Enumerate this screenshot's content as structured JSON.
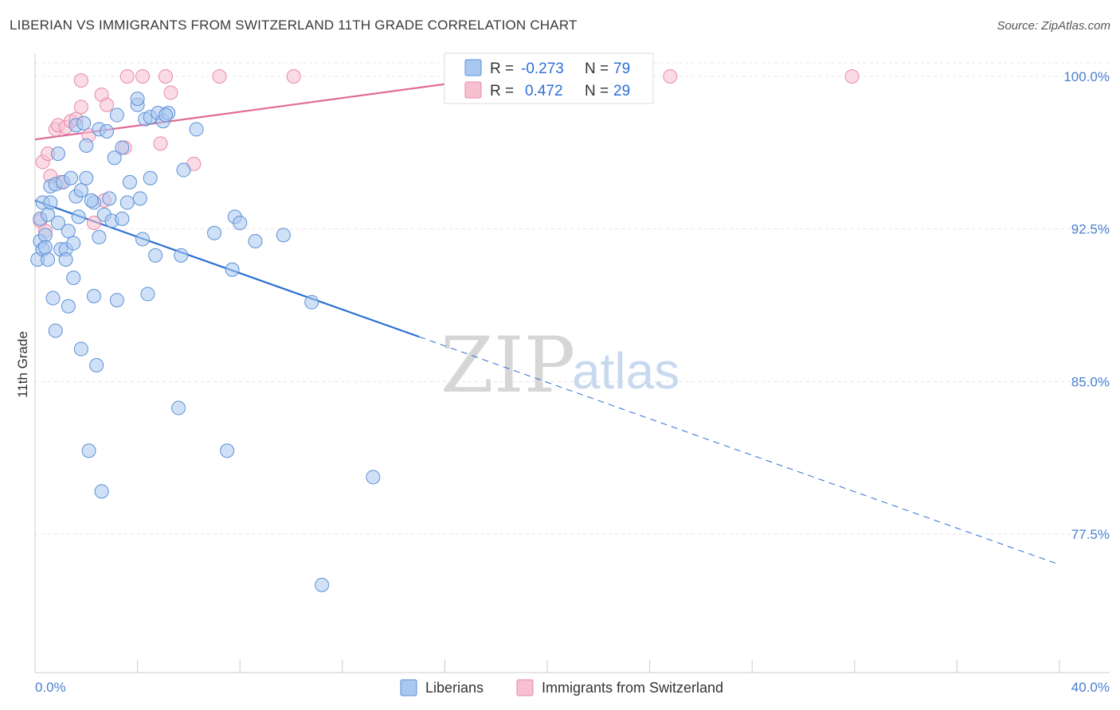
{
  "title": "LIBERIAN VS IMMIGRANTS FROM SWITZERLAND 11TH GRADE CORRELATION CHART",
  "source": "Source: ZipAtlas.com",
  "watermark": {
    "zip": "ZIP",
    "atlas": "atlas"
  },
  "chart_data": {
    "type": "scatter",
    "title": "LIBERIAN VS IMMIGRANTS FROM SWITZERLAND 11TH GRADE CORRELATION CHART",
    "xlabel": "",
    "ylabel": "11th Grade",
    "xlim": [
      0,
      40
    ],
    "ylim": [
      71,
      100.7
    ],
    "x_tick_labels": [
      "0.0%",
      "40.0%"
    ],
    "y_ticks": [
      100.0,
      92.5,
      85.0,
      77.5
    ],
    "y_tick_labels": [
      "100.0%",
      "92.5%",
      "85.0%",
      "77.5%"
    ],
    "grid": true,
    "legend": {
      "position": "top-center",
      "entries": [
        {
          "name": "Liberians",
          "r_label": "R =",
          "r": "-0.273",
          "n_label": "N =",
          "n": "79"
        },
        {
          "name": "Immigrants from Switzerland",
          "r_label": "R =",
          "r": "0.472",
          "n_label": "N =",
          "n": "29"
        }
      ]
    },
    "colors": {
      "liberians_fill": "#a9c8f0",
      "liberians_stroke": "#5b8fd6",
      "liberians_line": "#2b6fd3",
      "swiss_fill": "#f7bfd0",
      "swiss_stroke": "#e88aa8",
      "swiss_line": "#e06b96"
    },
    "series": [
      {
        "name": "Liberians",
        "trend": {
          "x0": 0,
          "y0": 93.9,
          "x1": 15.0,
          "y1": 87.2,
          "dash_x1": 40,
          "dash_y1": 76.0
        },
        "points": [
          [
            0.1,
            91.0
          ],
          [
            0.2,
            91.9
          ],
          [
            0.2,
            93.0
          ],
          [
            0.3,
            93.8
          ],
          [
            0.3,
            91.5
          ],
          [
            0.4,
            92.2
          ],
          [
            0.5,
            91.0
          ],
          [
            0.5,
            93.2
          ],
          [
            0.6,
            94.6
          ],
          [
            0.6,
            93.8
          ],
          [
            0.7,
            89.1
          ],
          [
            0.8,
            87.5
          ],
          [
            0.8,
            94.7
          ],
          [
            0.9,
            96.2
          ],
          [
            0.9,
            92.8
          ],
          [
            1.0,
            91.5
          ],
          [
            1.1,
            94.8
          ],
          [
            1.2,
            91.5
          ],
          [
            1.2,
            91.0
          ],
          [
            1.3,
            92.4
          ],
          [
            1.3,
            88.7
          ],
          [
            1.4,
            95.0
          ],
          [
            1.5,
            91.8
          ],
          [
            1.5,
            90.1
          ],
          [
            1.6,
            97.6
          ],
          [
            1.6,
            94.1
          ],
          [
            1.8,
            94.4
          ],
          [
            1.8,
            86.6
          ],
          [
            1.9,
            97.7
          ],
          [
            2.0,
            96.6
          ],
          [
            2.0,
            95.0
          ],
          [
            2.1,
            81.6
          ],
          [
            2.3,
            93.8
          ],
          [
            2.3,
            89.2
          ],
          [
            2.4,
            85.8
          ],
          [
            2.5,
            97.4
          ],
          [
            2.5,
            92.1
          ],
          [
            2.6,
            79.6
          ],
          [
            2.7,
            93.2
          ],
          [
            2.8,
            97.3
          ],
          [
            2.9,
            94.0
          ],
          [
            3.0,
            92.9
          ],
          [
            3.1,
            96.0
          ],
          [
            3.2,
            98.1
          ],
          [
            3.2,
            89.0
          ],
          [
            3.4,
            96.5
          ],
          [
            3.6,
            93.8
          ],
          [
            3.7,
            94.8
          ],
          [
            4.0,
            98.6
          ],
          [
            4.0,
            98.9
          ],
          [
            4.1,
            94.0
          ],
          [
            4.2,
            92.0
          ],
          [
            4.3,
            97.9
          ],
          [
            4.4,
            89.3
          ],
          [
            4.5,
            98.0
          ],
          [
            4.5,
            95.0
          ],
          [
            4.7,
            91.2
          ],
          [
            4.8,
            98.2
          ],
          [
            5.0,
            97.8
          ],
          [
            5.2,
            98.2
          ],
          [
            5.1,
            98.1
          ],
          [
            5.6,
            83.7
          ],
          [
            5.7,
            91.2
          ],
          [
            5.8,
            95.4
          ],
          [
            6.3,
            97.4
          ],
          [
            7.0,
            92.3
          ],
          [
            7.5,
            81.6
          ],
          [
            7.7,
            90.5
          ],
          [
            7.8,
            93.1
          ],
          [
            8.0,
            92.8
          ],
          [
            8.6,
            91.9
          ],
          [
            9.7,
            92.2
          ],
          [
            10.8,
            88.9
          ],
          [
            11.2,
            75.0
          ],
          [
            13.2,
            80.3
          ],
          [
            3.4,
            93.0
          ],
          [
            2.2,
            93.9
          ],
          [
            0.4,
            91.6
          ],
          [
            1.7,
            93.1
          ]
        ]
      },
      {
        "name": "Immigrants from Switzerland",
        "trend": {
          "x0": 0,
          "y0": 96.9,
          "x1": 20.0,
          "y1": 100.3
        },
        "points": [
          [
            0.2,
            92.9
          ],
          [
            0.3,
            95.8
          ],
          [
            0.4,
            92.4
          ],
          [
            0.5,
            96.2
          ],
          [
            0.6,
            95.1
          ],
          [
            0.8,
            97.4
          ],
          [
            0.9,
            97.6
          ],
          [
            1.0,
            94.8
          ],
          [
            1.2,
            97.5
          ],
          [
            1.4,
            97.8
          ],
          [
            1.6,
            97.9
          ],
          [
            1.8,
            98.5
          ],
          [
            1.8,
            99.8
          ],
          [
            2.1,
            97.1
          ],
          [
            2.3,
            92.8
          ],
          [
            2.6,
            99.1
          ],
          [
            2.7,
            93.9
          ],
          [
            2.8,
            98.6
          ],
          [
            3.5,
            96.5
          ],
          [
            3.6,
            100.0
          ],
          [
            4.2,
            100.0
          ],
          [
            4.9,
            96.7
          ],
          [
            5.1,
            100.0
          ],
          [
            5.3,
            99.2
          ],
          [
            6.2,
            95.7
          ],
          [
            7.2,
            100.0
          ],
          [
            10.1,
            100.0
          ],
          [
            24.8,
            100.0
          ],
          [
            31.9,
            100.0
          ]
        ]
      }
    ]
  }
}
